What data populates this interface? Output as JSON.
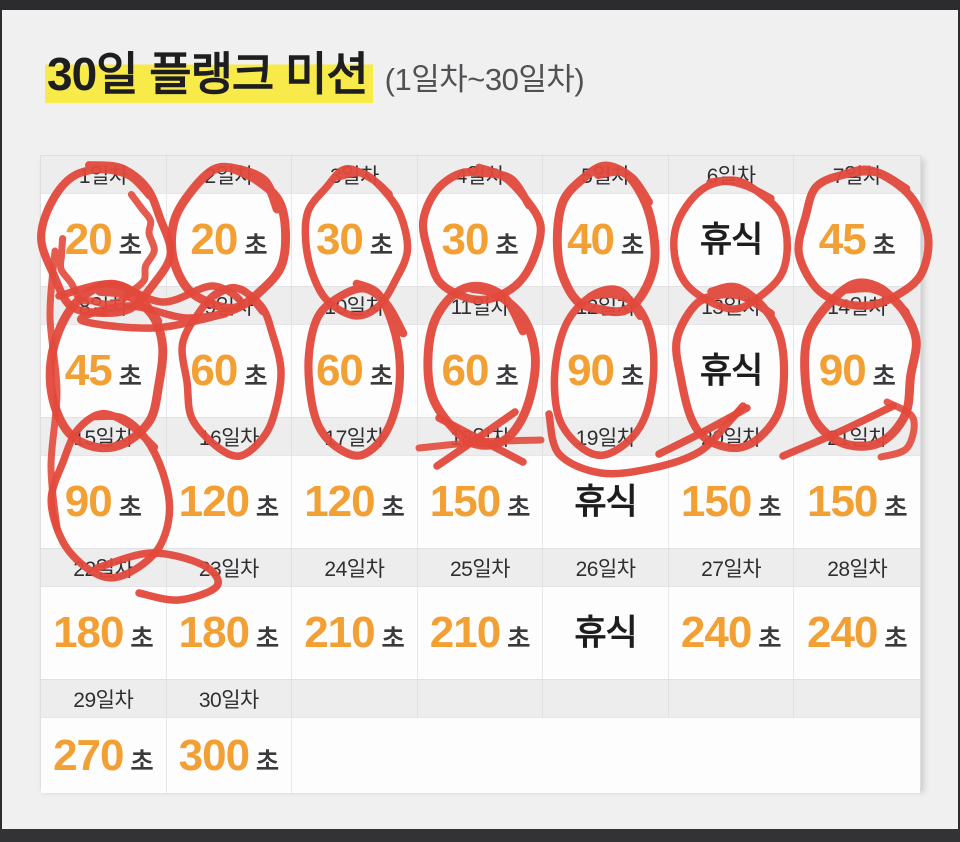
{
  "page": {
    "title_highlight": "30일 플랭크 미션",
    "title_suffix": "(1일차~30일차)"
  },
  "table": {
    "columns_per_row": 7,
    "day_label_suffix": "일차",
    "seconds_suffix": "초",
    "rest_label": "휴식",
    "days": [
      {
        "day": 1,
        "type": "work",
        "seconds": "20"
      },
      {
        "day": 2,
        "type": "work",
        "seconds": "20"
      },
      {
        "day": 3,
        "type": "work",
        "seconds": "30"
      },
      {
        "day": 4,
        "type": "work",
        "seconds": "30"
      },
      {
        "day": 5,
        "type": "work",
        "seconds": "40"
      },
      {
        "day": 6,
        "type": "rest"
      },
      {
        "day": 7,
        "type": "work",
        "seconds": "45"
      },
      {
        "day": 8,
        "type": "work",
        "seconds": "45"
      },
      {
        "day": 9,
        "type": "work",
        "seconds": "60"
      },
      {
        "day": 10,
        "type": "work",
        "seconds": "60"
      },
      {
        "day": 11,
        "type": "work",
        "seconds": "60"
      },
      {
        "day": 12,
        "type": "work",
        "seconds": "90"
      },
      {
        "day": 13,
        "type": "rest"
      },
      {
        "day": 14,
        "type": "work",
        "seconds": "90"
      },
      {
        "day": 15,
        "type": "work",
        "seconds": "90"
      },
      {
        "day": 16,
        "type": "work",
        "seconds": "120"
      },
      {
        "day": 17,
        "type": "work",
        "seconds": "120"
      },
      {
        "day": 18,
        "type": "work",
        "seconds": "150"
      },
      {
        "day": 19,
        "type": "rest"
      },
      {
        "day": 20,
        "type": "work",
        "seconds": "150"
      },
      {
        "day": 21,
        "type": "work",
        "seconds": "150"
      },
      {
        "day": 22,
        "type": "work",
        "seconds": "180"
      },
      {
        "day": 23,
        "type": "work",
        "seconds": "180"
      },
      {
        "day": 24,
        "type": "work",
        "seconds": "210"
      },
      {
        "day": 25,
        "type": "work",
        "seconds": "210"
      },
      {
        "day": 26,
        "type": "rest"
      },
      {
        "day": 27,
        "type": "work",
        "seconds": "240"
      },
      {
        "day": 28,
        "type": "work",
        "seconds": "240"
      },
      {
        "day": 29,
        "type": "work",
        "seconds": "270"
      },
      {
        "day": 30,
        "type": "work",
        "seconds": "300"
      }
    ]
  },
  "annotations": {
    "pen_color": "#e2493b",
    "circled_days": [
      1,
      2,
      3,
      4,
      5,
      6,
      7,
      8,
      9,
      10,
      11,
      12,
      13,
      14,
      15
    ],
    "scribbled_headers": [
      8,
      16,
      17,
      18,
      19,
      20,
      21,
      22
    ]
  },
  "colors": {
    "accent_orange": "#f2a034",
    "highlight_yellow": "#f7ea49",
    "rest_text": "#1d1d1f",
    "header_bg": "#ededee",
    "page_bg": "#f0f0f1",
    "letterbox": "#2c2c2e"
  }
}
